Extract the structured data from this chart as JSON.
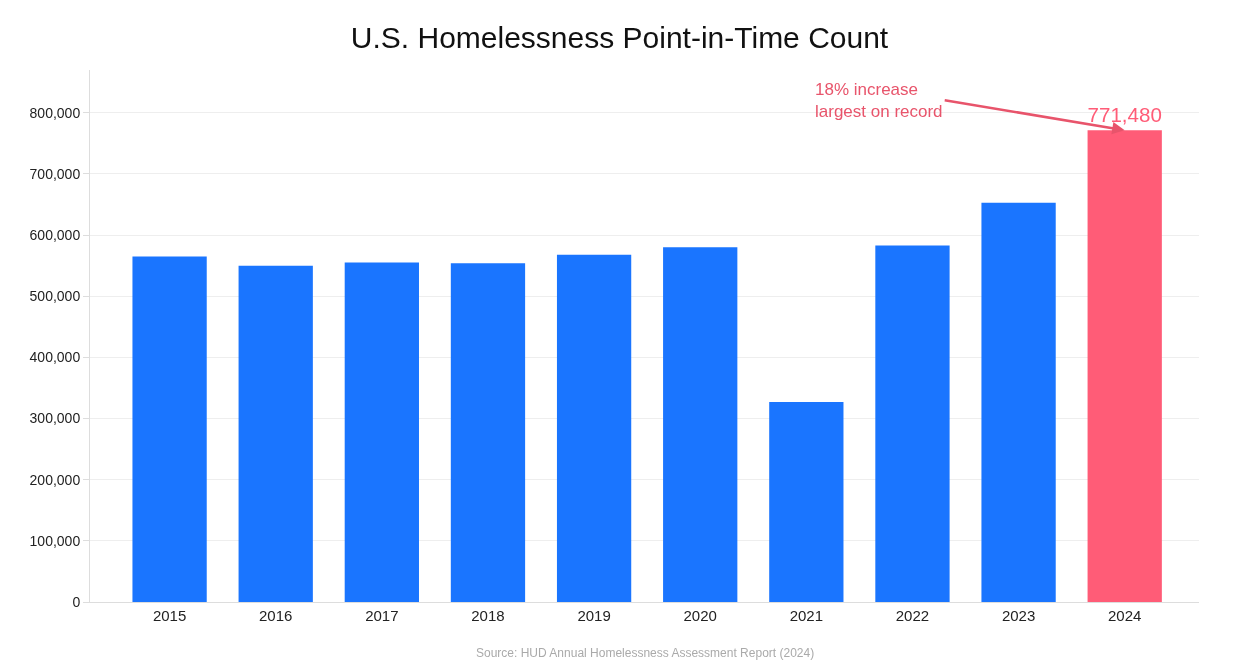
{
  "chart_data": {
    "type": "bar",
    "title": "U.S. Homelessness Point-in-Time Count",
    "categories": [
      "2015",
      "2016",
      "2017",
      "2018",
      "2019",
      "2020",
      "2021",
      "2022",
      "2023",
      "2024"
    ],
    "values": [
      565000,
      550000,
      555000,
      554000,
      568000,
      580000,
      327000,
      583000,
      653000,
      771480
    ],
    "colors": [
      "#1a75ff",
      "#1a75ff",
      "#1a75ff",
      "#1a75ff",
      "#1a75ff",
      "#1a75ff",
      "#1a75ff",
      "#1a75ff",
      "#1a75ff",
      "#ff5c77"
    ],
    "value_labels": [
      null,
      null,
      null,
      null,
      null,
      null,
      null,
      null,
      null,
      "771,480"
    ],
    "ylim": [
      0,
      870000
    ],
    "yticks": [
      {
        "value": 0,
        "label": "0"
      },
      {
        "value": 100000,
        "label": "100,000"
      },
      {
        "value": 200000,
        "label": "200,000"
      },
      {
        "value": 300000,
        "label": "300,000"
      },
      {
        "value": 400000,
        "label": "400,000"
      },
      {
        "value": 500000,
        "label": "500,000"
      },
      {
        "value": 600000,
        "label": "600,000"
      },
      {
        "value": 700000,
        "label": "700,000"
      },
      {
        "value": 800000,
        "label": "800,000"
      }
    ],
    "grid": "y",
    "annotations": [
      {
        "text": "18% increase\nlargest on record",
        "x": "2024",
        "y": 771480
      },
      "Source: HUD Annual Homelessness Assessment Report (2024)"
    ]
  }
}
